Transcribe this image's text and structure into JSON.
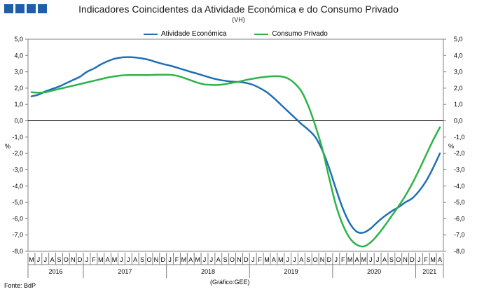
{
  "header": {
    "title": "Indicadores Coincidentes da Atividade Económica e do Consumo Privado",
    "subtitle": "(VH)"
  },
  "colors": {
    "atividade": "#1f6fb5",
    "consumo": "#2db34a",
    "logo": "#1f5fa8"
  },
  "footer": {
    "source": "Fonte: BdP",
    "credit": "(Gráfico:GEE)"
  },
  "chart_data": {
    "type": "line",
    "title": "Indicadores Coincidentes da Atividade Económica e do Consumo Privado",
    "subtitle": "(VH)",
    "ylabel_left": "%",
    "ylabel_right": "%",
    "ylim": [
      -8,
      5
    ],
    "yticks": [
      "5,0",
      "4,0",
      "3,0",
      "2,0",
      "1,0",
      "0,0",
      "-1,0",
      "-2,0",
      "-3,0",
      "-4,0",
      "-5,0",
      "-6,0",
      "-7,0",
      "-8,0"
    ],
    "ytick_values": [
      5,
      4,
      3,
      2,
      1,
      0,
      -1,
      -2,
      -3,
      -4,
      -5,
      -6,
      -7,
      -8
    ],
    "grid": false,
    "legend_position": "top",
    "x": [
      "M",
      "J",
      "J",
      "A",
      "S",
      "O",
      "N",
      "D",
      "J",
      "F",
      "M",
      "A",
      "M",
      "J",
      "J",
      "A",
      "S",
      "O",
      "N",
      "D",
      "J",
      "F",
      "M",
      "A",
      "M",
      "J",
      "J",
      "A",
      "S",
      "O",
      "N",
      "D",
      "J",
      "F",
      "M",
      "A",
      "M",
      "J",
      "J",
      "A",
      "S",
      "O",
      "N",
      "D",
      "J",
      "F",
      "M",
      "A",
      "M",
      "J",
      "J",
      "A",
      "S",
      "O",
      "N",
      "D",
      "J",
      "F",
      "M",
      "A"
    ],
    "years": [
      {
        "label": "2016",
        "start": 0,
        "count": 8
      },
      {
        "label": "2017",
        "start": 8,
        "count": 12
      },
      {
        "label": "2018",
        "start": 20,
        "count": 12
      },
      {
        "label": "2019",
        "start": 32,
        "count": 12
      },
      {
        "label": "2020",
        "start": 44,
        "count": 12
      },
      {
        "label": "2021",
        "start": 56,
        "count": 4
      }
    ],
    "series": [
      {
        "name": "Atividade Económica",
        "color": "#1f6fb5",
        "values": [
          1.5,
          1.6,
          1.8,
          1.95,
          2.1,
          2.3,
          2.5,
          2.7,
          3.0,
          3.2,
          3.45,
          3.65,
          3.8,
          3.88,
          3.9,
          3.88,
          3.82,
          3.73,
          3.6,
          3.48,
          3.38,
          3.26,
          3.13,
          3.0,
          2.88,
          2.75,
          2.62,
          2.52,
          2.45,
          2.4,
          2.38,
          2.32,
          2.2,
          2.0,
          1.75,
          1.4,
          1.0,
          0.6,
          0.2,
          -0.2,
          -0.55,
          -1.0,
          -1.8,
          -2.9,
          -4.2,
          -5.4,
          -6.3,
          -6.8,
          -6.85,
          -6.6,
          -6.2,
          -5.85,
          -5.55,
          -5.3,
          -5.0,
          -4.75,
          -4.3,
          -3.7,
          -2.9,
          -2.0
        ]
      },
      {
        "name": "Consumo Privado",
        "color": "#2db34a",
        "values": [
          1.75,
          1.72,
          1.75,
          1.85,
          1.95,
          2.05,
          2.15,
          2.25,
          2.35,
          2.45,
          2.55,
          2.65,
          2.72,
          2.78,
          2.8,
          2.8,
          2.8,
          2.8,
          2.82,
          2.82,
          2.82,
          2.76,
          2.63,
          2.48,
          2.33,
          2.23,
          2.2,
          2.2,
          2.25,
          2.33,
          2.4,
          2.5,
          2.58,
          2.65,
          2.7,
          2.73,
          2.72,
          2.6,
          2.3,
          1.8,
          0.9,
          -0.3,
          -1.7,
          -3.5,
          -5.2,
          -6.4,
          -7.2,
          -7.6,
          -7.7,
          -7.45,
          -7.0,
          -6.45,
          -5.85,
          -5.25,
          -4.6,
          -3.85,
          -3.0,
          -2.1,
          -1.2,
          -0.4
        ]
      }
    ]
  }
}
